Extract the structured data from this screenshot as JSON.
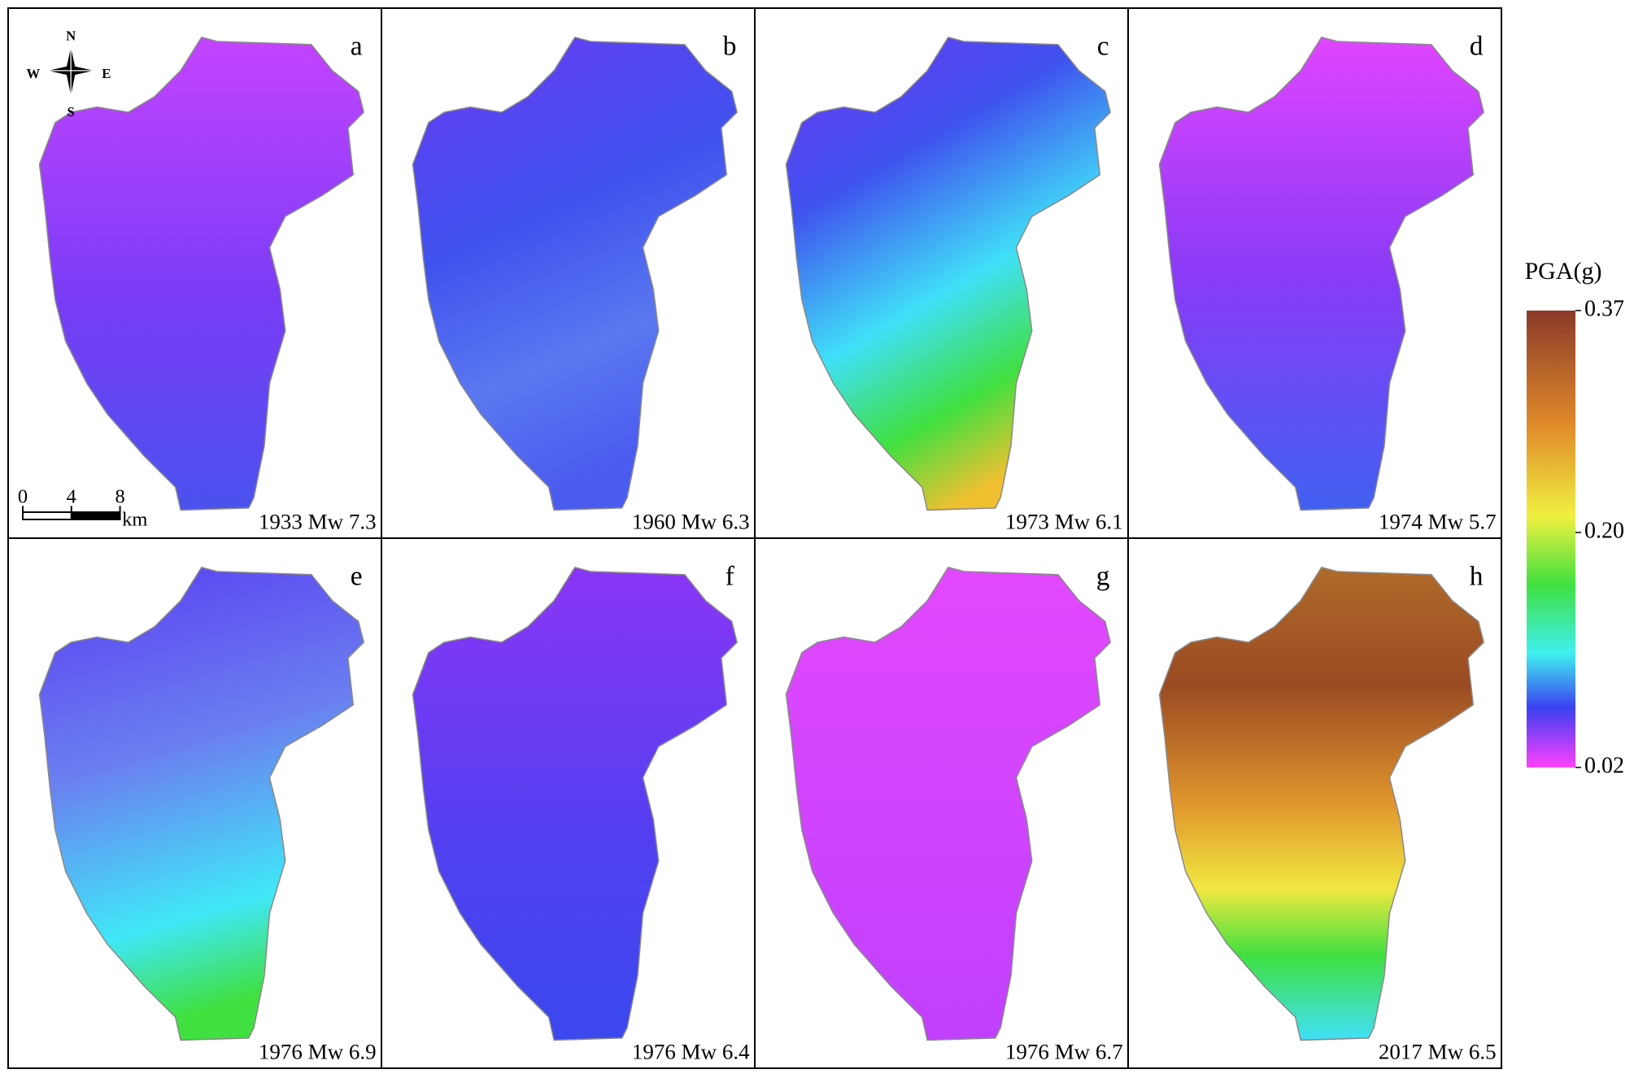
{
  "panels": [
    {
      "letter": "a",
      "caption": "1933 Mw 7.3"
    },
    {
      "letter": "b",
      "caption": "1960 Mw 6.3"
    },
    {
      "letter": "c",
      "caption": "1973 Mw 6.1"
    },
    {
      "letter": "d",
      "caption": "1974 Mw 5.7"
    },
    {
      "letter": "e",
      "caption": "1976 Mw 6.9"
    },
    {
      "letter": "f",
      "caption": "1976 Mw 6.4"
    },
    {
      "letter": "g",
      "caption": "1976 Mw 6.7"
    },
    {
      "letter": "h",
      "caption": "2017 Mw 6.5"
    }
  ],
  "compass": {
    "north": "N",
    "south": "S",
    "west": "W",
    "east": "E"
  },
  "scale_bar": {
    "ticks": [
      0,
      4,
      8
    ],
    "unit": "km"
  },
  "legend": {
    "title": "PGA(g)",
    "range": [
      0.02,
      0.37
    ],
    "ticks": [
      0.37,
      {
        "value": 0.2,
        "label": "0.20"
      },
      0.02
    ]
  }
}
